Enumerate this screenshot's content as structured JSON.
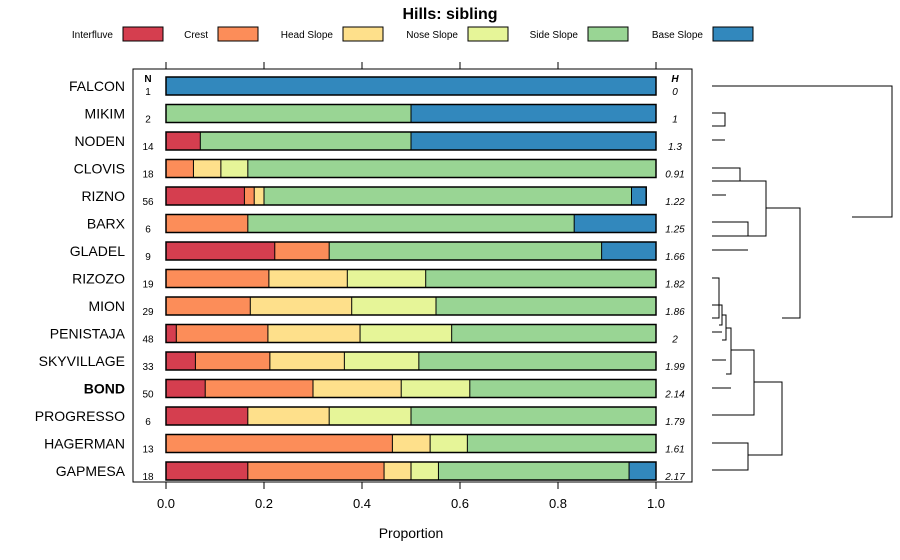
{
  "chart_data": {
    "type": "bar",
    "orientation": "horizontal-stacked",
    "title": "Hills: sibling",
    "xlabel": "Proportion",
    "ylabel": "",
    "xlim": [
      0,
      1
    ],
    "x_ticks": [
      "0.0",
      "0.2",
      "0.4",
      "0.6",
      "0.8",
      "1.0"
    ],
    "n_header": "N",
    "h_header": "H",
    "legend_position": "top",
    "series": [
      {
        "name": "Interfluve",
        "color": "#d53e4f"
      },
      {
        "name": "Crest",
        "color": "#fc8d59"
      },
      {
        "name": "Head Slope",
        "color": "#fee08b"
      },
      {
        "name": "Nose Slope",
        "color": "#e6f598"
      },
      {
        "name": "Side Slope",
        "color": "#99d594"
      },
      {
        "name": "Base Slope",
        "color": "#3288bd"
      }
    ],
    "categories": [
      {
        "name": "FALCON",
        "n": "1",
        "h": "0",
        "bold": false,
        "values": [
          0,
          0,
          0,
          0,
          0,
          1.0
        ]
      },
      {
        "name": "MIKIM",
        "n": "2",
        "h": "1",
        "bold": false,
        "values": [
          0,
          0,
          0,
          0,
          0.5,
          0.5
        ]
      },
      {
        "name": "NODEN",
        "n": "14",
        "h": "1.3",
        "bold": false,
        "values": [
          0.07,
          0,
          0,
          0,
          0.43,
          0.5
        ]
      },
      {
        "name": "CLOVIS",
        "n": "18",
        "h": "0.91",
        "bold": false,
        "values": [
          0,
          0.056,
          0.056,
          0.055,
          0.833,
          0
        ]
      },
      {
        "name": "RIZNO",
        "n": "56",
        "h": "1.22",
        "bold": false,
        "values": [
          0.16,
          0.02,
          0.02,
          0,
          0.75,
          0.03
        ]
      },
      {
        "name": "BARX",
        "n": "6",
        "h": "1.25",
        "bold": false,
        "values": [
          0,
          0.167,
          0,
          0,
          0.666,
          0.167
        ]
      },
      {
        "name": "GLADEL",
        "n": "9",
        "h": "1.66",
        "bold": false,
        "values": [
          0.222,
          0.111,
          0,
          0,
          0.556,
          0.111
        ]
      },
      {
        "name": "RIZOZO",
        "n": "19",
        "h": "1.82",
        "bold": false,
        "values": [
          0,
          0.21,
          0.16,
          0.16,
          0.47,
          0
        ]
      },
      {
        "name": "MION",
        "n": "29",
        "h": "1.86",
        "bold": false,
        "values": [
          0,
          0.172,
          0.207,
          0.172,
          0.449,
          0
        ]
      },
      {
        "name": "PENISTAJA",
        "n": "48",
        "h": "2",
        "bold": false,
        "values": [
          0.021,
          0.187,
          0.188,
          0.187,
          0.417,
          0
        ]
      },
      {
        "name": "SKYVILLAGE",
        "n": "33",
        "h": "1.99",
        "bold": false,
        "values": [
          0.06,
          0.152,
          0.152,
          0.152,
          0.484,
          0
        ]
      },
      {
        "name": "BOND",
        "n": "50",
        "h": "2.14",
        "bold": true,
        "values": [
          0.08,
          0.22,
          0.18,
          0.14,
          0.38,
          0
        ]
      },
      {
        "name": "PROGRESSO",
        "n": "6",
        "h": "1.79",
        "bold": false,
        "values": [
          0.167,
          0,
          0.166,
          0.167,
          0.5,
          0
        ]
      },
      {
        "name": "HAGERMAN",
        "n": "13",
        "h": "1.61",
        "bold": false,
        "values": [
          0,
          0.462,
          0.077,
          0.076,
          0.385,
          0
        ]
      },
      {
        "name": "GAPMESA",
        "n": "18",
        "h": "2.17",
        "bold": false,
        "values": [
          0.167,
          0.278,
          0.055,
          0.056,
          0.389,
          0.055
        ]
      }
    ]
  }
}
